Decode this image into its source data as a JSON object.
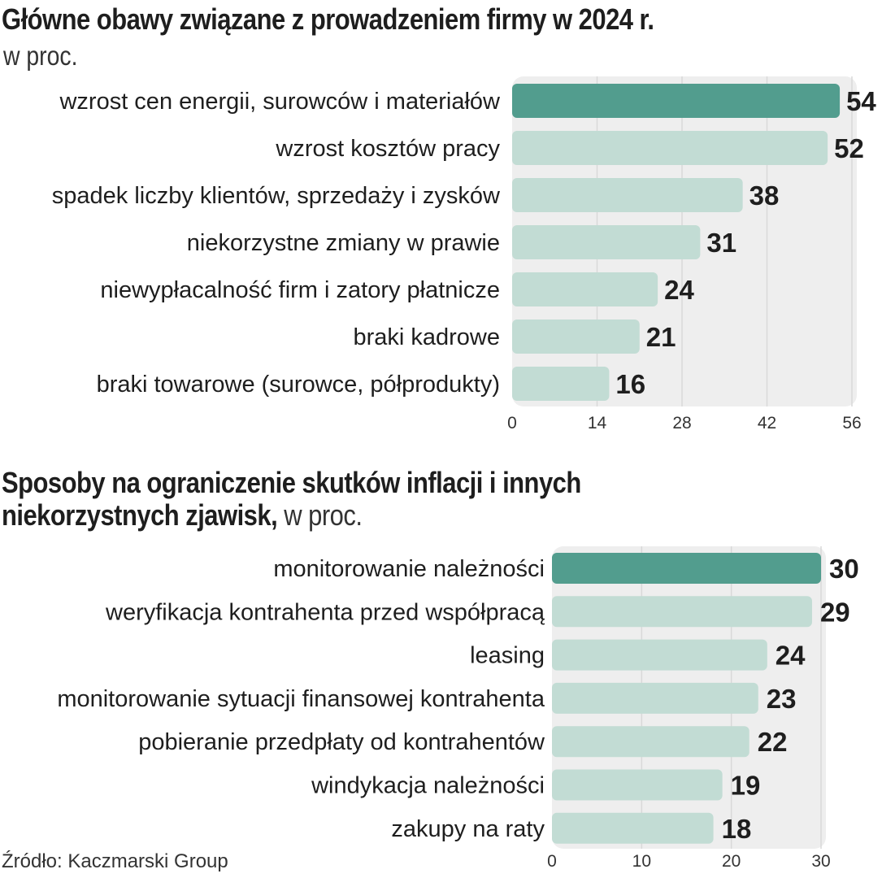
{
  "chart_data": [
    {
      "type": "bar",
      "orientation": "horizontal",
      "title": "Główne obawy związane z prowadzeniem firmy w 2024 r.",
      "subtitle": "w proc.",
      "categories": [
        "wzrost cen energii, surowców i materiałów",
        "wzrost kosztów pracy",
        "spadek liczby klientów, sprzedaży i zysków",
        "niekorzystne zmiany w prawie",
        "niewypłacalność firm i zatory płatnicze",
        "braki kadrowe",
        "braki towarowe (surowce, półprodukty)"
      ],
      "values": [
        54,
        52,
        38,
        31,
        24,
        21,
        16
      ],
      "value_labels": [
        "54",
        "52",
        "38",
        "31",
        "24",
        "21",
        "16"
      ],
      "highlight_index": 0,
      "xlim": [
        0,
        56
      ],
      "ticks": [
        0,
        14,
        28,
        42,
        56
      ],
      "tick_labels": [
        "0",
        "14",
        "28",
        "42",
        "56"
      ],
      "grid": true,
      "xlabel": "",
      "ylabel": ""
    },
    {
      "type": "bar",
      "orientation": "horizontal",
      "title": "Sposoby na ograniczenie skutków inflacji i innych niekorzystnych zjawisk,",
      "title_lines": [
        "Sposoby na ograniczenie skutków inflacji i innych",
        "niekorzystnych zjawisk,"
      ],
      "subtitle": "w proc.",
      "categories": [
        "monitorowanie należności",
        "weryfikacja kontrahenta przed współpracą",
        "leasing",
        "monitorowanie sytuacji finansowej kontrahenta",
        "pobieranie przedpłaty od kontrahentów",
        "windykacja należności",
        "zakupy na raty"
      ],
      "values": [
        30,
        29,
        24,
        23,
        22,
        19,
        18
      ],
      "value_labels": [
        "30",
        "29",
        "24",
        "23",
        "22",
        "19",
        "18"
      ],
      "highlight_index": 0,
      "xlim": [
        0,
        30
      ],
      "ticks": [
        0,
        10,
        20,
        30
      ],
      "tick_labels": [
        "0",
        "10",
        "20",
        "30"
      ],
      "grid": true,
      "xlabel": "",
      "ylabel": ""
    }
  ],
  "source": "Źródło: Kaczmarski Group",
  "colors": {
    "highlight_bar": "#529d8e",
    "bar": "#c2dcd4",
    "panel": "#eeeeee",
    "grid": "#d9d9d9",
    "text": "#1e1e1e"
  }
}
